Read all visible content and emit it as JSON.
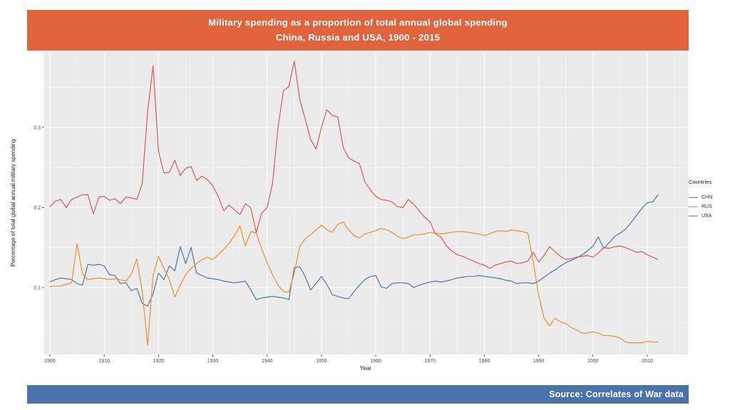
{
  "header": {
    "title_line1": "Military spending as a proportion of total annual global spending",
    "title_line2": "China, Russia and USA, 1900 - 2015",
    "background": "#E0633E",
    "text_color": "#FFFFFF"
  },
  "footer": {
    "source_text": "Source: Correlates of War data",
    "background": "#4A73AC",
    "text_color": "#FFFFFF"
  },
  "chart_data": {
    "type": "line",
    "title": "Military spending as a proportion of total annual global spending, China, Russia and USA, 1900 - 2015",
    "xlabel": "Year",
    "ylabel": "Percentage of total global annual military spending",
    "legend_title": "Countries",
    "legend_position": "right",
    "panel_background": "#EBEBEB",
    "grid": {
      "major_color": "#FFFFFF",
      "minor_color": "#FFFFFF",
      "x_minor": [
        1905,
        1915,
        1925,
        1935,
        1945,
        1955,
        1965,
        1975,
        1985,
        1995,
        2005,
        2015
      ],
      "y_minor": [
        0.05,
        0.15,
        0.25,
        0.35
      ]
    },
    "x_ticks": {
      "values": [
        1900,
        1910,
        1920,
        1930,
        1940,
        1950,
        1960,
        1970,
        1980,
        1990,
        2000,
        2010
      ],
      "labels": [
        "1900",
        "1910",
        "1920",
        "1930",
        "1940",
        "1950",
        "1960",
        "1970",
        "1980",
        "1990",
        "2000",
        "2010"
      ]
    },
    "y_ticks": {
      "values": [
        0.1,
        0.2,
        0.3
      ],
      "labels": [
        "0.1",
        "0.2",
        "0.3"
      ]
    },
    "xlim": [
      1899,
      2017.5
    ],
    "ylim": [
      0.016,
      0.394
    ],
    "x_start": 1900,
    "x": [
      1900,
      1901,
      1902,
      1903,
      1904,
      1905,
      1906,
      1907,
      1908,
      1909,
      1910,
      1911,
      1912,
      1913,
      1914,
      1915,
      1916,
      1917,
      1918,
      1919,
      1920,
      1921,
      1922,
      1923,
      1924,
      1925,
      1926,
      1927,
      1928,
      1929,
      1930,
      1931,
      1932,
      1933,
      1934,
      1935,
      1936,
      1937,
      1938,
      1939,
      1940,
      1941,
      1942,
      1943,
      1944,
      1945,
      1946,
      1947,
      1948,
      1949,
      1950,
      1951,
      1952,
      1953,
      1954,
      1955,
      1956,
      1957,
      1958,
      1959,
      1960,
      1961,
      1962,
      1963,
      1964,
      1965,
      1966,
      1967,
      1968,
      1969,
      1970,
      1971,
      1972,
      1973,
      1974,
      1975,
      1976,
      1977,
      1978,
      1979,
      1980,
      1981,
      1982,
      1983,
      1984,
      1985,
      1986,
      1987,
      1988,
      1989,
      1990,
      1991,
      1992,
      1993,
      1994,
      1995,
      1996,
      1997,
      1998,
      1999,
      2000,
      2001,
      2002,
      2003,
      2004,
      2005,
      2006,
      2007,
      2008,
      2009,
      2010,
      2011,
      2012
    ],
    "series": [
      {
        "name": "CHN",
        "color": "#4E79A7",
        "values": [
          0.107,
          0.11,
          0.112,
          0.111,
          0.11,
          0.105,
          0.103,
          0.129,
          0.128,
          0.129,
          0.127,
          0.116,
          0.115,
          0.105,
          0.106,
          0.096,
          0.099,
          0.08,
          0.077,
          0.092,
          0.118,
          0.11,
          0.127,
          0.121,
          0.151,
          0.13,
          0.15,
          0.118,
          0.115,
          0.112,
          0.111,
          0.11,
          0.108,
          0.107,
          0.106,
          0.107,
          0.108,
          0.097,
          0.085,
          0.087,
          0.088,
          0.089,
          0.088,
          0.087,
          0.085,
          0.125,
          0.126,
          0.114,
          0.097,
          0.105,
          0.114,
          0.104,
          0.091,
          0.089,
          0.087,
          0.086,
          0.095,
          0.103,
          0.11,
          0.114,
          0.115,
          0.101,
          0.099,
          0.105,
          0.106,
          0.106,
          0.105,
          0.1,
          0.103,
          0.105,
          0.107,
          0.108,
          0.107,
          0.108,
          0.11,
          0.112,
          0.113,
          0.114,
          0.114,
          0.115,
          0.114,
          0.113,
          0.112,
          0.111,
          0.109,
          0.108,
          0.105,
          0.106,
          0.106,
          0.105,
          0.108,
          0.113,
          0.118,
          0.122,
          0.127,
          0.131,
          0.134,
          0.137,
          0.141,
          0.146,
          0.152,
          0.163,
          0.149,
          0.156,
          0.164,
          0.168,
          0.173,
          0.181,
          0.19,
          0.199,
          0.206,
          0.207,
          0.216
        ]
      },
      {
        "name": "RUS",
        "color": "#F28E2B",
        "values": [
          0.101,
          0.102,
          0.102,
          0.104,
          0.106,
          0.155,
          0.117,
          0.11,
          0.111,
          0.112,
          0.111,
          0.11,
          0.111,
          0.11,
          0.108,
          0.117,
          0.136,
          0.095,
          0.028,
          0.115,
          0.139,
          0.124,
          0.11,
          0.088,
          0.103,
          0.116,
          0.124,
          0.13,
          0.135,
          0.138,
          0.135,
          0.141,
          0.148,
          0.155,
          0.165,
          0.177,
          0.152,
          0.17,
          0.168,
          0.148,
          0.131,
          0.116,
          0.103,
          0.095,
          0.094,
          0.118,
          0.151,
          0.161,
          0.166,
          0.172,
          0.178,
          0.172,
          0.169,
          0.179,
          0.182,
          0.172,
          0.165,
          0.162,
          0.167,
          0.169,
          0.171,
          0.174,
          0.172,
          0.169,
          0.164,
          0.161,
          0.163,
          0.166,
          0.166,
          0.167,
          0.169,
          0.168,
          0.167,
          0.168,
          0.169,
          0.17,
          0.17,
          0.169,
          0.168,
          0.167,
          0.165,
          0.167,
          0.17,
          0.171,
          0.17,
          0.172,
          0.171,
          0.17,
          0.168,
          0.132,
          0.09,
          0.062,
          0.052,
          0.062,
          0.057,
          0.055,
          0.05,
          0.047,
          0.043,
          0.043,
          0.045,
          0.043,
          0.04,
          0.04,
          0.039,
          0.037,
          0.032,
          0.031,
          0.031,
          0.031,
          0.033,
          0.032,
          0.032
        ]
      },
      {
        "name": "USA",
        "color": "#E15759",
        "values": [
          0.201,
          0.208,
          0.21,
          0.2,
          0.21,
          0.213,
          0.216,
          0.216,
          0.192,
          0.213,
          0.214,
          0.209,
          0.211,
          0.205,
          0.213,
          0.212,
          0.21,
          0.23,
          0.32,
          0.377,
          0.27,
          0.243,
          0.244,
          0.259,
          0.24,
          0.249,
          0.251,
          0.234,
          0.239,
          0.235,
          0.227,
          0.214,
          0.196,
          0.203,
          0.197,
          0.191,
          0.205,
          0.199,
          0.169,
          0.193,
          0.2,
          0.23,
          0.3,
          0.346,
          0.351,
          0.383,
          0.335,
          0.311,
          0.285,
          0.273,
          0.3,
          0.322,
          0.315,
          0.313,
          0.275,
          0.262,
          0.258,
          0.255,
          0.232,
          0.222,
          0.214,
          0.21,
          0.209,
          0.207,
          0.201,
          0.2,
          0.21,
          0.204,
          0.196,
          0.188,
          0.182,
          0.167,
          0.163,
          0.152,
          0.146,
          0.141,
          0.139,
          0.136,
          0.133,
          0.13,
          0.128,
          0.124,
          0.128,
          0.13,
          0.132,
          0.133,
          0.13,
          0.131,
          0.133,
          0.144,
          0.132,
          0.14,
          0.151,
          0.145,
          0.139,
          0.135,
          0.136,
          0.138,
          0.139,
          0.14,
          0.138,
          0.143,
          0.15,
          0.149,
          0.151,
          0.152,
          0.15,
          0.147,
          0.144,
          0.145,
          0.141,
          0.138,
          0.135
        ]
      }
    ]
  }
}
